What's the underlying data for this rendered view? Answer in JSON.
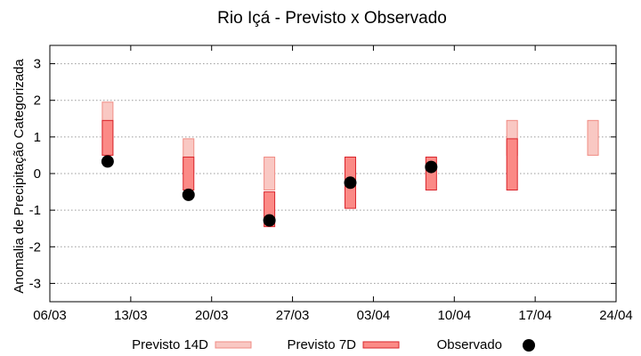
{
  "chart_data": {
    "type": "bar",
    "subtype": "floating-range-with-points",
    "title": "Rio Içá - Previsto x Observado",
    "xlabel": "",
    "ylabel": "Anomalia de Precipitação Categorizada",
    "ylim": [
      -3.5,
      3.5
    ],
    "yticks": [
      "3",
      "2",
      "1",
      "0",
      "-1",
      "-2",
      "-3"
    ],
    "ytick_values": [
      3,
      2,
      1,
      0,
      -1,
      -2,
      -3
    ],
    "xlim_days": [
      0,
      49
    ],
    "xticks": [
      "06/03",
      "13/03",
      "20/03",
      "27/03",
      "03/04",
      "10/04",
      "17/04",
      "24/04"
    ],
    "grid": true,
    "legend_position": "bottom",
    "colors": {
      "previsto_14d_fill": "#f9c8c3",
      "previsto_14d_stroke": "#f08c84",
      "previsto_7d_fill": "#fb8a86",
      "previsto_7d_stroke": "#d9242b",
      "observado": "#000000",
      "grid": "#9a9a9a"
    },
    "series": [
      {
        "name": "Previsto 14D",
        "x_days": [
          5,
          12,
          19,
          26,
          40,
          47
        ],
        "ranges": [
          [
            0.5,
            1.95
          ],
          [
            0.0,
            0.95
          ],
          [
            -0.45,
            0.45
          ],
          [
            -0.45,
            0.45
          ],
          [
            0.5,
            1.45
          ],
          [
            0.5,
            1.45
          ]
        ]
      },
      {
        "name": "Previsto 7D",
        "x_days": [
          5,
          12,
          19,
          26,
          33,
          40
        ],
        "ranges": [
          [
            0.5,
            1.45
          ],
          [
            -0.45,
            0.45
          ],
          [
            -1.45,
            -0.5
          ],
          [
            -0.95,
            0.45
          ],
          [
            -0.45,
            0.45
          ],
          [
            -0.45,
            0.95
          ]
        ]
      },
      {
        "name": "Observado",
        "x_days": [
          5,
          12,
          19,
          26,
          33
        ],
        "values": [
          0.33,
          -0.58,
          -1.28,
          -0.25,
          0.18
        ]
      }
    ]
  }
}
